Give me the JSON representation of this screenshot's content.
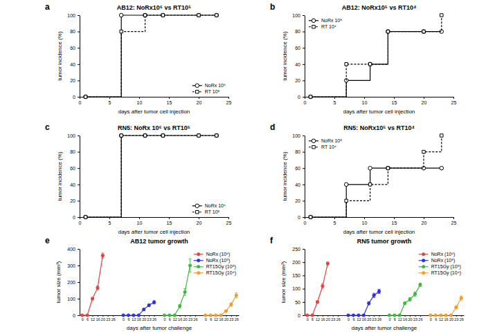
{
  "chart_data": [
    {
      "panel": "a",
      "type": "step",
      "title": "AB12: NoRx10⁶ vs RT10⁵",
      "x_label": "days after tumor cell injection",
      "y_label": "tumor incidence (%)",
      "x": [
        1,
        7,
        11,
        14,
        20,
        23
      ],
      "series": [
        {
          "name": "NoRx 10⁶",
          "color": "#000000",
          "marker": "open-circle",
          "line_style": "solid",
          "values": [
            0,
            100,
            100,
            100,
            100,
            100
          ]
        },
        {
          "name": "RT 10⁵",
          "color": "#000000",
          "marker": "open-square",
          "line_style": "dashed",
          "values": [
            0,
            80,
            100,
            100,
            100,
            100
          ]
        }
      ],
      "xlim": [
        0,
        25
      ],
      "xticks": [
        0,
        5,
        10,
        15,
        20,
        25
      ],
      "ylim": [
        0,
        100
      ],
      "yticks": [
        0,
        20,
        40,
        60,
        80,
        100
      ],
      "legend": "lower right",
      "grid": false
    },
    {
      "panel": "b",
      "type": "step",
      "title": "AB12: NoRx10⁵ vs RT10⁴",
      "x_label": "days after tumor cell injection",
      "y_label": "tumor incidence (%)",
      "x": [
        1,
        7,
        11,
        14,
        20,
        23
      ],
      "series": [
        {
          "name": "NoRx 10⁵",
          "color": "#000000",
          "marker": "open-circle",
          "line_style": "solid",
          "values": [
            0,
            20,
            40,
            80,
            80,
            80
          ]
        },
        {
          "name": "RT 10⁴",
          "color": "#000000",
          "marker": "open-square",
          "line_style": "dashed",
          "values": [
            0,
            40,
            40,
            80,
            80,
            100
          ]
        }
      ],
      "xlim": [
        0,
        25
      ],
      "xticks": [
        0,
        5,
        10,
        15,
        20,
        25
      ],
      "ylim": [
        0,
        100
      ],
      "yticks": [
        0,
        20,
        40,
        60,
        80,
        100
      ],
      "legend": "upper left",
      "grid": false
    },
    {
      "panel": "c",
      "type": "step",
      "title": "RN5: NoRx 10⁶ vs RT10⁵",
      "x_label": "days after tumor cell injection",
      "y_label": "tumor incidence (%)",
      "x": [
        1,
        7,
        11,
        14,
        20,
        23
      ],
      "series": [
        {
          "name": "NoRx 10⁶",
          "color": "#000000",
          "marker": "open-circle",
          "line_style": "solid",
          "values": [
            0,
            100,
            100,
            100,
            100,
            100
          ]
        },
        {
          "name": "RT 10⁵",
          "color": "#000000",
          "marker": "open-square",
          "line_style": "dashed",
          "values": [
            0,
            100,
            100,
            100,
            100,
            100
          ]
        }
      ],
      "xlim": [
        0,
        25
      ],
      "xticks": [
        0,
        5,
        10,
        15,
        20,
        25
      ],
      "ylim": [
        0,
        100
      ],
      "yticks": [
        0,
        20,
        40,
        60,
        80,
        100
      ],
      "legend": "lower right",
      "grid": false
    },
    {
      "panel": "d",
      "type": "step",
      "title": "RN5: NoRx10⁵ vs RT10⁴",
      "x_label": "days after tumor cell injection",
      "y_label": "tumor incidence (%)",
      "x": [
        1,
        7,
        11,
        14,
        20,
        23
      ],
      "series": [
        {
          "name": "NoRx 10⁵",
          "color": "#000000",
          "marker": "open-circle",
          "line_style": "solid",
          "values": [
            0,
            40,
            60,
            60,
            60,
            60
          ]
        },
        {
          "name": "RT 10⁴",
          "color": "#000000",
          "marker": "open-square",
          "line_style": "dashed",
          "values": [
            0,
            20,
            40,
            60,
            80,
            100
          ]
        }
      ],
      "xlim": [
        0,
        25
      ],
      "xticks": [
        0,
        5,
        10,
        15,
        20,
        25
      ],
      "ylim": [
        0,
        100
      ],
      "yticks": [
        0,
        20,
        40,
        60,
        80,
        100
      ],
      "legend": "upper left",
      "grid": false
    },
    {
      "panel": "e",
      "type": "line",
      "title": "AB12 tumor growth",
      "x_label": "days after tumor challenge",
      "y_label": "tumor size (mm³)",
      "categories": [
        "0",
        "6",
        "12",
        "16",
        "20",
        "23",
        "26",
        null,
        "0",
        "6",
        "12",
        "16",
        "20",
        "23",
        "26",
        null,
        "0",
        "6",
        "12",
        "16",
        "20",
        "23",
        "26",
        null,
        "0",
        "6",
        "12",
        "16",
        "20",
        "23",
        "26"
      ],
      "series": [
        {
          "name": "NoRx (10⁶)",
          "color": "#e8413b",
          "marker": "circle",
          "values": [
            0,
            0,
            100,
            165,
            360,
            null,
            null,
            null,
            null,
            null,
            null,
            null,
            null,
            null,
            null,
            null,
            null,
            null,
            null,
            null,
            null,
            null,
            null,
            null,
            null,
            null,
            null,
            null,
            null,
            null,
            null
          ],
          "errors": [
            0,
            0,
            8,
            12,
            15,
            null,
            null,
            null,
            null,
            null,
            null,
            null,
            null,
            null,
            null,
            null,
            null,
            null,
            null,
            null,
            null,
            null,
            null,
            null,
            null,
            null,
            null,
            null,
            null,
            null,
            null
          ]
        },
        {
          "name": "NoRx (10⁵)",
          "color": "#2d2ded",
          "marker": "circle",
          "values": [
            null,
            null,
            null,
            null,
            null,
            null,
            null,
            null,
            0,
            0,
            0,
            0,
            35,
            60,
            78,
            null,
            null,
            null,
            null,
            null,
            null,
            null,
            null,
            null,
            null,
            null,
            null,
            null,
            null,
            null,
            null
          ],
          "errors": [
            null,
            null,
            null,
            null,
            null,
            null,
            null,
            null,
            0,
            0,
            0,
            0,
            5,
            8,
            10,
            null,
            null,
            null,
            null,
            null,
            null,
            null,
            null,
            null,
            null,
            null,
            null,
            null,
            null,
            null,
            null
          ]
        },
        {
          "name": "RT15Gy (10⁵)",
          "color": "#3cb93c",
          "marker": "circle",
          "values": [
            null,
            null,
            null,
            null,
            null,
            null,
            null,
            null,
            null,
            null,
            null,
            null,
            null,
            null,
            null,
            null,
            0,
            0,
            0,
            55,
            140,
            300,
            null,
            null,
            null,
            null,
            null,
            null,
            null,
            null,
            null
          ],
          "errors": [
            null,
            null,
            null,
            null,
            null,
            null,
            null,
            null,
            null,
            null,
            null,
            null,
            null,
            null,
            null,
            null,
            0,
            0,
            0,
            10,
            20,
            40,
            null,
            null,
            null,
            null,
            null,
            null,
            null,
            null,
            null
          ]
        },
        {
          "name": "RT15Gy (10⁴)",
          "color": "#f39c2a",
          "marker": "circle",
          "values": [
            null,
            null,
            null,
            null,
            null,
            null,
            null,
            null,
            null,
            null,
            null,
            null,
            null,
            null,
            null,
            null,
            null,
            null,
            null,
            null,
            null,
            null,
            null,
            null,
            0,
            0,
            0,
            0,
            25,
            65,
            120
          ],
          "errors": [
            null,
            null,
            null,
            null,
            null,
            null,
            null,
            null,
            null,
            null,
            null,
            null,
            null,
            null,
            null,
            null,
            null,
            null,
            null,
            null,
            null,
            null,
            null,
            null,
            0,
            0,
            0,
            0,
            5,
            10,
            15
          ]
        }
      ],
      "ylim": [
        0,
        400
      ],
      "yticks": [
        0,
        100,
        200,
        300,
        400
      ],
      "legend": "upper right",
      "grid": false
    },
    {
      "panel": "f",
      "type": "line",
      "title": "RN5 tumor growth",
      "x_label": "days after tumor challenge",
      "y_label": "tumor size (mm³)",
      "categories": [
        "0",
        "6",
        "12",
        "16",
        "20",
        "23",
        "26",
        null,
        "0",
        "6",
        "12",
        "16",
        "20",
        "23",
        "26",
        null,
        "0",
        "6",
        "12",
        "16",
        "20",
        "23",
        "26",
        null,
        "0",
        "6",
        "12",
        "16",
        "20",
        "23",
        "26"
      ],
      "series": [
        {
          "name": "NoRx (10⁶)",
          "color": "#e8413b",
          "marker": "circle",
          "values": [
            0,
            0,
            50,
            110,
            195,
            null,
            null,
            null,
            null,
            null,
            null,
            null,
            null,
            null,
            null,
            null,
            null,
            null,
            null,
            null,
            null,
            null,
            null,
            null,
            null,
            null,
            null,
            null,
            null,
            null,
            null
          ],
          "errors": [
            0,
            0,
            5,
            8,
            5,
            null,
            null,
            null,
            null,
            null,
            null,
            null,
            null,
            null,
            null,
            null,
            null,
            null,
            null,
            null,
            null,
            null,
            null,
            null,
            null,
            null,
            null,
            null,
            null,
            null,
            null
          ]
        },
        {
          "name": "NoRx (10⁵)",
          "color": "#2d2ded",
          "marker": "circle",
          "values": [
            null,
            null,
            null,
            null,
            null,
            null,
            null,
            null,
            0,
            0,
            0,
            0,
            45,
            75,
            90,
            null,
            null,
            null,
            null,
            null,
            null,
            null,
            null,
            null,
            null,
            null,
            null,
            null,
            null,
            null,
            null
          ],
          "errors": [
            null,
            null,
            null,
            null,
            null,
            null,
            null,
            null,
            0,
            0,
            0,
            0,
            6,
            8,
            8,
            null,
            null,
            null,
            null,
            null,
            null,
            null,
            null,
            null,
            null,
            null,
            null,
            null,
            null,
            null,
            null
          ]
        },
        {
          "name": "RT15Gy (10⁵)",
          "color": "#3cb93c",
          "marker": "circle",
          "values": [
            null,
            null,
            null,
            null,
            null,
            null,
            null,
            null,
            null,
            null,
            null,
            null,
            null,
            null,
            null,
            null,
            0,
            0,
            0,
            45,
            60,
            80,
            115,
            null,
            null,
            null,
            null,
            null,
            null,
            null,
            null
          ],
          "errors": [
            null,
            null,
            null,
            null,
            null,
            null,
            null,
            null,
            null,
            null,
            null,
            null,
            null,
            null,
            null,
            null,
            0,
            0,
            0,
            5,
            6,
            8,
            6,
            null,
            null,
            null,
            null,
            null,
            null,
            null,
            null
          ]
        },
        {
          "name": "RT15Gy (10⁴)",
          "color": "#f39c2a",
          "marker": "circle",
          "values": [
            null,
            null,
            null,
            null,
            null,
            null,
            null,
            null,
            null,
            null,
            null,
            null,
            null,
            null,
            null,
            null,
            null,
            null,
            null,
            null,
            null,
            null,
            null,
            null,
            0,
            0,
            0,
            0,
            0,
            30,
            65
          ],
          "errors": [
            null,
            null,
            null,
            null,
            null,
            null,
            null,
            null,
            null,
            null,
            null,
            null,
            null,
            null,
            null,
            null,
            null,
            null,
            null,
            null,
            null,
            null,
            null,
            null,
            0,
            0,
            0,
            0,
            0,
            5,
            8
          ]
        }
      ],
      "ylim": [
        0,
        250
      ],
      "yticks": [
        0,
        50,
        100,
        150,
        200,
        250
      ],
      "legend": "upper right",
      "grid": false
    }
  ]
}
